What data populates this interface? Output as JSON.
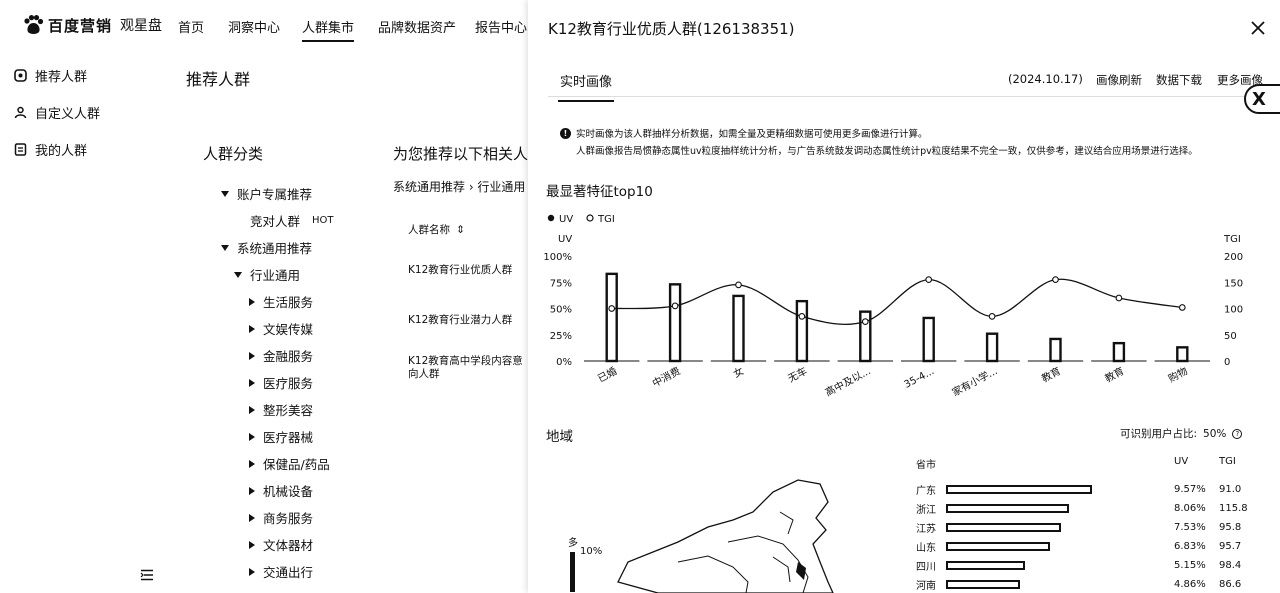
{
  "brand": {
    "name": "百度营销",
    "product": "观星盘"
  },
  "nav": [
    {
      "label": "首页"
    },
    {
      "label": "洞察中心"
    },
    {
      "label": "人群集市",
      "active": true
    },
    {
      "label": "品牌数据资产"
    },
    {
      "label": "报告中心"
    }
  ],
  "sidebar": [
    {
      "label": "推荐人群",
      "icon": "recommend-icon"
    },
    {
      "label": "自定义人群",
      "icon": "user-group-icon"
    },
    {
      "label": "我的人群",
      "icon": "my-list-icon"
    }
  ],
  "list": {
    "section_title": "推荐人群",
    "category_title": "人群分类",
    "tree": [
      {
        "label": "账户专属推荐",
        "level": 1,
        "state": "open"
      },
      {
        "label": "竞对人群",
        "level": 2,
        "state": "leaf",
        "badge": "HOT"
      },
      {
        "label": "系统通用推荐",
        "level": 1,
        "state": "open"
      },
      {
        "label": "行业通用",
        "level": 2,
        "state": "open"
      },
      {
        "label": "生活服务",
        "level": 3,
        "state": "closed"
      },
      {
        "label": "文娱传媒",
        "level": 3,
        "state": "closed"
      },
      {
        "label": "金融服务",
        "level": 3,
        "state": "closed"
      },
      {
        "label": "医疗服务",
        "level": 3,
        "state": "closed"
      },
      {
        "label": "整形美容",
        "level": 3,
        "state": "closed"
      },
      {
        "label": "医疗器械",
        "level": 3,
        "state": "closed"
      },
      {
        "label": "保健品/药品",
        "level": 3,
        "state": "closed"
      },
      {
        "label": "机械设备",
        "level": 3,
        "state": "closed"
      },
      {
        "label": "商务服务",
        "level": 3,
        "state": "closed"
      },
      {
        "label": "文体器材",
        "level": 3,
        "state": "closed"
      },
      {
        "label": "交通出行",
        "level": 3,
        "state": "closed"
      }
    ],
    "rec_title": "为您推荐以下相关人群",
    "rec_breadcrumb": "系统通用推荐 › 行业通用",
    "rec_column": "人群名称",
    "rec_rows": [
      "K12教育行业优质人群",
      "K12教育行业潜力人群",
      "K12教育高中学段内容意向人群"
    ]
  },
  "drawer": {
    "title": "K12教育行业优质人群(126138351)",
    "tab": "实时画像",
    "date": "(2024.10.17)",
    "links": [
      "画像刷新",
      "数据下载",
      "更多画像"
    ],
    "notice_line1": "实时画像为该人群抽样分析数据，如需全量及更精细数据可使用更多画像进行计算。",
    "notice_line2": "人群画像报告局惯静态属性uv粒度抽样统计分析，与广告系统鼓发调动态属性统计pv粒度结果不完全一致，仅供参考，建议结合应用场景进行选择。",
    "top10_title": "最显著特征top10",
    "region_title": "地域",
    "identify_label": "可识别用户占比:",
    "identify_value": "50%"
  },
  "chart_data": {
    "type": "bar",
    "title": "最显著特征top10",
    "categories": [
      "已婚",
      "中消费",
      "女",
      "无车",
      "高中及以...",
      "35-4...",
      "家有小学...",
      "教育",
      "教育",
      "购物"
    ],
    "series": [
      {
        "name": "UV",
        "type": "bar",
        "axis": "left",
        "values": [
          83,
          73,
          62,
          57,
          47,
          41,
          26,
          21,
          17,
          13
        ]
      },
      {
        "name": "TGI",
        "type": "line",
        "axis": "right",
        "values": [
          100,
          105,
          145,
          85,
          75,
          155,
          85,
          155,
          120,
          102
        ]
      }
    ],
    "ylabel_left": "UV",
    "ylabel_right": "TGI",
    "yticks_left": [
      "0%",
      "25%",
      "50%",
      "75%",
      "100%"
    ],
    "yticks_right": [
      "0",
      "50",
      "100",
      "150",
      "200"
    ],
    "ylim_left": [
      0,
      100
    ],
    "ylim_right": [
      0,
      200
    ],
    "legend_position": "top-left"
  },
  "region": {
    "legend_top": "多",
    "legend_value": "10%",
    "columns": [
      "省市",
      "UV",
      "TGI"
    ],
    "rows": [
      {
        "name": "广东",
        "uv": "9.57%",
        "tgi": "91.0",
        "share": 0.0957
      },
      {
        "name": "浙江",
        "uv": "8.06%",
        "tgi": "115.8",
        "share": 0.0806
      },
      {
        "name": "江苏",
        "uv": "7.53%",
        "tgi": "95.8",
        "share": 0.0753
      },
      {
        "name": "山东",
        "uv": "6.83%",
        "tgi": "95.7",
        "share": 0.0683
      },
      {
        "name": "四川",
        "uv": "5.15%",
        "tgi": "98.4",
        "share": 0.0515
      },
      {
        "name": "河南",
        "uv": "4.86%",
        "tgi": "86.6",
        "share": 0.0486
      }
    ]
  }
}
